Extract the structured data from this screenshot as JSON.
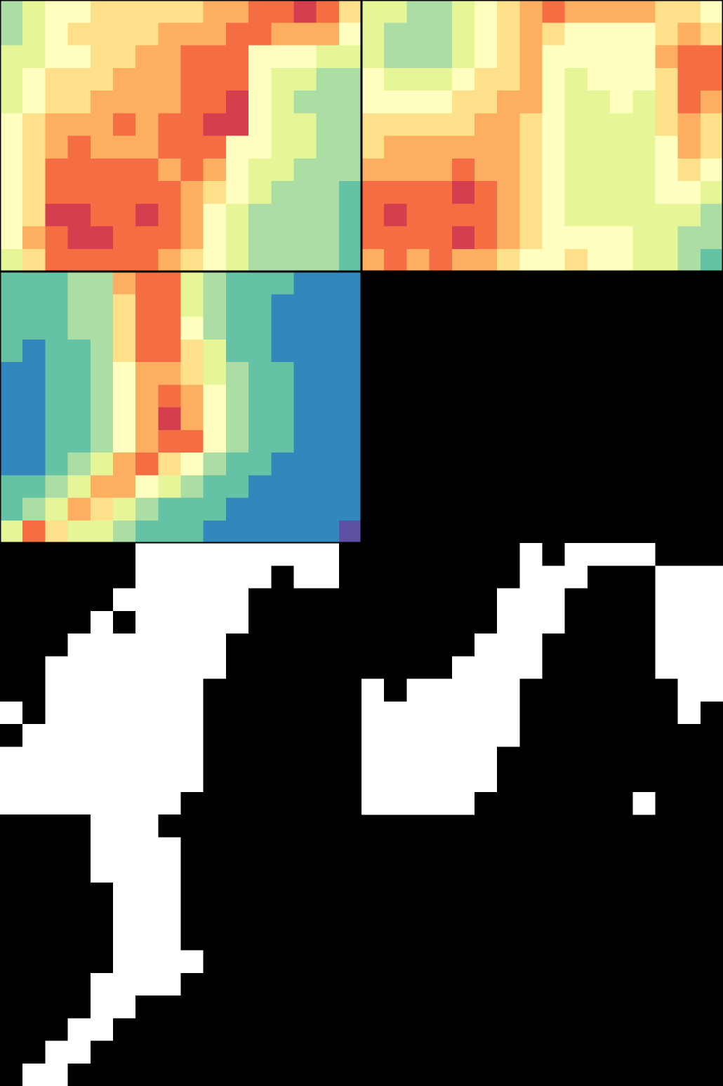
{
  "colors": [
    "#5e4fa2",
    "#3288bd",
    "#66c2a5",
    "#abdda4",
    "#e6f598",
    "#ffffbf",
    "#fee08b",
    "#fdae61",
    "#f46d43",
    "#d53e4f",
    "#9e0142"
  ],
  "mask_colors": [
    "#000000",
    "#ffffff"
  ],
  "heatmaps": [
    {
      "values": [
        [
          3,
          4,
          5,
          5,
          6,
          6,
          6,
          6,
          6,
          7,
          7,
          8,
          8,
          9,
          8,
          6
        ],
        [
          3,
          4,
          5,
          6,
          6,
          6,
          6,
          7,
          7,
          7,
          8,
          8,
          7,
          7,
          7,
          5
        ],
        [
          4,
          4,
          5,
          5,
          6,
          6,
          7,
          7,
          8,
          8,
          8,
          5,
          5,
          5,
          4,
          4
        ],
        [
          4,
          5,
          6,
          6,
          6,
          7,
          7,
          7,
          8,
          8,
          8,
          5,
          4,
          4,
          3,
          3
        ],
        [
          4,
          5,
          6,
          6,
          7,
          7,
          7,
          7,
          8,
          8,
          9,
          5,
          4,
          3,
          3,
          3
        ],
        [
          5,
          6,
          7,
          7,
          7,
          8,
          7,
          8,
          8,
          9,
          9,
          5,
          4,
          4,
          3,
          3
        ],
        [
          5,
          6,
          7,
          8,
          7,
          7,
          7,
          8,
          8,
          8,
          5,
          5,
          4,
          4,
          3,
          3
        ],
        [
          5,
          6,
          8,
          8,
          8,
          8,
          8,
          7,
          8,
          7,
          5,
          4,
          4,
          3,
          3,
          3
        ],
        [
          5,
          6,
          8,
          8,
          8,
          8,
          8,
          8,
          7,
          6,
          5,
          4,
          3,
          3,
          3,
          2
        ],
        [
          5,
          6,
          9,
          9,
          8,
          8,
          9,
          8,
          7,
          5,
          4,
          3,
          3,
          3,
          3,
          2
        ],
        [
          5,
          7,
          8,
          9,
          9,
          8,
          8,
          8,
          7,
          5,
          4,
          3,
          3,
          3,
          3,
          2
        ],
        [
          4,
          6,
          8,
          8,
          8,
          8,
          8,
          7,
          6,
          5,
          4,
          3,
          3,
          3,
          3,
          2
        ]
      ]
    },
    {
      "values": [
        [
          4,
          4,
          3,
          3,
          4,
          5,
          6,
          7,
          8,
          7,
          7,
          7,
          7,
          6,
          6,
          5
        ],
        [
          4,
          3,
          3,
          3,
          4,
          5,
          6,
          7,
          6,
          5,
          5,
          5,
          5,
          6,
          7,
          6
        ],
        [
          4,
          3,
          3,
          3,
          4,
          5,
          6,
          7,
          5,
          5,
          5,
          5,
          5,
          7,
          8,
          8
        ],
        [
          5,
          4,
          4,
          4,
          5,
          6,
          6,
          7,
          5,
          4,
          5,
          5,
          5,
          6,
          8,
          8
        ],
        [
          5,
          5,
          5,
          5,
          6,
          6,
          7,
          7,
          5,
          4,
          4,
          5,
          4,
          6,
          8,
          7
        ],
        [
          6,
          6,
          6,
          6,
          6,
          7,
          7,
          6,
          5,
          4,
          4,
          4,
          4,
          6,
          7,
          6
        ],
        [
          6,
          7,
          7,
          7,
          7,
          7,
          7,
          6,
          5,
          4,
          4,
          4,
          4,
          5,
          7,
          6
        ],
        [
          7,
          7,
          7,
          7,
          8,
          7,
          7,
          6,
          5,
          4,
          4,
          4,
          4,
          5,
          6,
          5
        ],
        [
          8,
          8,
          8,
          8,
          9,
          8,
          7,
          6,
          5,
          4,
          4,
          4,
          4,
          5,
          5,
          4
        ],
        [
          8,
          9,
          8,
          8,
          8,
          8,
          7,
          6,
          5,
          4,
          4,
          4,
          4,
          4,
          4,
          3
        ],
        [
          8,
          8,
          8,
          8,
          9,
          8,
          7,
          6,
          5,
          5,
          5,
          5,
          4,
          4,
          3,
          3
        ],
        [
          7,
          8,
          7,
          8,
          7,
          7,
          6,
          5,
          5,
          6,
          5,
          5,
          4,
          4,
          3,
          2
        ]
      ]
    },
    {
      "values": [
        [
          2,
          2,
          2,
          3,
          3,
          7,
          8,
          8,
          4,
          3,
          2,
          2,
          2,
          1,
          1,
          1
        ],
        [
          2,
          2,
          2,
          3,
          3,
          6,
          8,
          8,
          4,
          3,
          2,
          2,
          1,
          1,
          1,
          1
        ],
        [
          2,
          2,
          2,
          3,
          3,
          6,
          8,
          8,
          5,
          3,
          2,
          2,
          1,
          1,
          1,
          1
        ],
        [
          2,
          1,
          2,
          2,
          3,
          6,
          8,
          8,
          6,
          4,
          2,
          2,
          1,
          1,
          1,
          1
        ],
        [
          1,
          1,
          2,
          2,
          3,
          5,
          7,
          7,
          6,
          4,
          3,
          2,
          2,
          1,
          1,
          1
        ],
        [
          1,
          1,
          2,
          2,
          3,
          5,
          7,
          8,
          7,
          5,
          3,
          2,
          2,
          1,
          1,
          1
        ],
        [
          1,
          1,
          2,
          2,
          3,
          5,
          7,
          9,
          7,
          5,
          3,
          2,
          2,
          1,
          1,
          1
        ],
        [
          1,
          1,
          2,
          2,
          3,
          5,
          7,
          8,
          8,
          5,
          3,
          2,
          2,
          1,
          1,
          1
        ],
        [
          1,
          1,
          2,
          3,
          4,
          7,
          8,
          6,
          5,
          3,
          2,
          2,
          1,
          1,
          1,
          1
        ],
        [
          2,
          2,
          3,
          4,
          7,
          7,
          5,
          4,
          3,
          2,
          2,
          1,
          1,
          1,
          1,
          1
        ],
        [
          2,
          3,
          4,
          7,
          6,
          4,
          3,
          2,
          2,
          2,
          1,
          1,
          1,
          1,
          1,
          1
        ],
        [
          4,
          8,
          6,
          4,
          4,
          3,
          2,
          2,
          2,
          1,
          1,
          1,
          1,
          1,
          1,
          0
        ]
      ]
    }
  ],
  "masks": [
    {
      "values": [
        [
          0,
          0,
          0,
          0,
          0,
          0,
          1,
          1,
          1,
          1,
          1,
          1,
          1,
          1,
          1,
          0
        ],
        [
          0,
          0,
          0,
          0,
          0,
          0,
          1,
          1,
          1,
          1,
          1,
          1,
          0,
          1,
          1,
          0
        ],
        [
          0,
          0,
          0,
          0,
          0,
          1,
          1,
          1,
          1,
          1,
          1,
          0,
          0,
          0,
          0,
          0
        ],
        [
          0,
          0,
          0,
          0,
          1,
          0,
          1,
          1,
          1,
          1,
          1,
          0,
          0,
          0,
          0,
          0
        ],
        [
          0,
          0,
          0,
          1,
          1,
          1,
          1,
          1,
          1,
          1,
          0,
          0,
          0,
          0,
          0,
          0
        ],
        [
          0,
          0,
          1,
          1,
          1,
          1,
          1,
          1,
          1,
          1,
          0,
          0,
          0,
          0,
          0,
          0
        ],
        [
          0,
          0,
          1,
          1,
          1,
          1,
          1,
          1,
          1,
          0,
          0,
          0,
          0,
          0,
          0,
          0
        ],
        [
          1,
          0,
          1,
          1,
          1,
          1,
          1,
          1,
          1,
          0,
          0,
          0,
          0,
          0,
          0,
          0
        ],
        [
          0,
          1,
          1,
          1,
          1,
          1,
          1,
          1,
          1,
          0,
          0,
          0,
          0,
          0,
          0,
          0
        ],
        [
          1,
          1,
          1,
          1,
          1,
          1,
          1,
          1,
          1,
          0,
          0,
          0,
          0,
          0,
          0,
          0
        ],
        [
          1,
          1,
          1,
          1,
          1,
          1,
          1,
          1,
          1,
          0,
          0,
          0,
          0,
          0,
          0,
          0
        ],
        [
          1,
          1,
          1,
          1,
          1,
          1,
          1,
          1,
          0,
          0,
          0,
          0,
          0,
          0,
          0,
          0
        ]
      ]
    },
    {
      "values": [
        [
          0,
          0,
          0,
          0,
          0,
          0,
          0,
          1,
          0,
          1,
          1,
          1,
          1,
          0,
          0,
          0
        ],
        [
          0,
          0,
          0,
          0,
          0,
          0,
          0,
          1,
          1,
          1,
          0,
          0,
          0,
          1,
          1,
          1
        ],
        [
          0,
          0,
          0,
          0,
          0,
          0,
          1,
          1,
          1,
          0,
          0,
          0,
          0,
          1,
          1,
          1
        ],
        [
          0,
          0,
          0,
          0,
          0,
          0,
          1,
          1,
          1,
          0,
          0,
          0,
          0,
          1,
          1,
          1
        ],
        [
          0,
          0,
          0,
          0,
          0,
          1,
          1,
          1,
          0,
          0,
          0,
          0,
          0,
          1,
          1,
          1
        ],
        [
          0,
          0,
          0,
          0,
          1,
          1,
          1,
          1,
          0,
          0,
          0,
          0,
          0,
          1,
          1,
          1
        ],
        [
          1,
          0,
          1,
          1,
          1,
          1,
          1,
          0,
          0,
          0,
          0,
          0,
          0,
          0,
          1,
          1
        ],
        [
          1,
          1,
          1,
          1,
          1,
          1,
          1,
          0,
          0,
          0,
          0,
          0,
          0,
          0,
          1,
          0
        ],
        [
          1,
          1,
          1,
          1,
          1,
          1,
          1,
          0,
          0,
          0,
          0,
          0,
          0,
          0,
          0,
          0
        ],
        [
          1,
          1,
          1,
          1,
          1,
          1,
          0,
          0,
          0,
          0,
          0,
          0,
          0,
          0,
          0,
          0
        ],
        [
          1,
          1,
          1,
          1,
          1,
          1,
          0,
          0,
          0,
          0,
          0,
          0,
          0,
          0,
          0,
          0
        ],
        [
          1,
          1,
          1,
          1,
          1,
          0,
          0,
          0,
          0,
          0,
          0,
          0,
          1,
          0,
          0,
          0
        ]
      ]
    },
    {
      "values": [
        [
          0,
          0,
          0,
          0,
          1,
          1,
          1,
          0,
          0,
          0,
          0,
          0,
          0,
          0,
          0,
          0
        ],
        [
          0,
          0,
          0,
          0,
          1,
          1,
          1,
          1,
          0,
          0,
          0,
          0,
          0,
          0,
          0,
          0
        ],
        [
          0,
          0,
          0,
          0,
          1,
          1,
          1,
          1,
          0,
          0,
          0,
          0,
          0,
          0,
          0,
          0
        ],
        [
          0,
          0,
          0,
          0,
          0,
          1,
          1,
          1,
          0,
          0,
          0,
          0,
          0,
          0,
          0,
          0
        ],
        [
          0,
          0,
          0,
          0,
          0,
          1,
          1,
          1,
          0,
          0,
          0,
          0,
          0,
          0,
          0,
          0
        ],
        [
          0,
          0,
          0,
          0,
          0,
          1,
          1,
          1,
          0,
          0,
          0,
          0,
          0,
          0,
          0,
          0
        ],
        [
          0,
          0,
          0,
          0,
          0,
          1,
          1,
          1,
          1,
          0,
          0,
          0,
          0,
          0,
          0,
          0
        ],
        [
          0,
          0,
          0,
          0,
          1,
          1,
          1,
          1,
          0,
          0,
          0,
          0,
          0,
          0,
          0,
          0
        ],
        [
          0,
          0,
          0,
          0,
          1,
          1,
          0,
          0,
          0,
          0,
          0,
          0,
          0,
          0,
          0,
          0
        ],
        [
          0,
          0,
          0,
          1,
          1,
          0,
          0,
          0,
          0,
          0,
          0,
          0,
          0,
          0,
          0,
          0
        ],
        [
          0,
          0,
          1,
          1,
          0,
          0,
          0,
          0,
          0,
          0,
          0,
          0,
          0,
          0,
          0,
          0
        ],
        [
          0,
          1,
          1,
          0,
          0,
          0,
          0,
          0,
          0,
          0,
          0,
          0,
          0,
          0,
          0,
          0
        ]
      ]
    }
  ]
}
